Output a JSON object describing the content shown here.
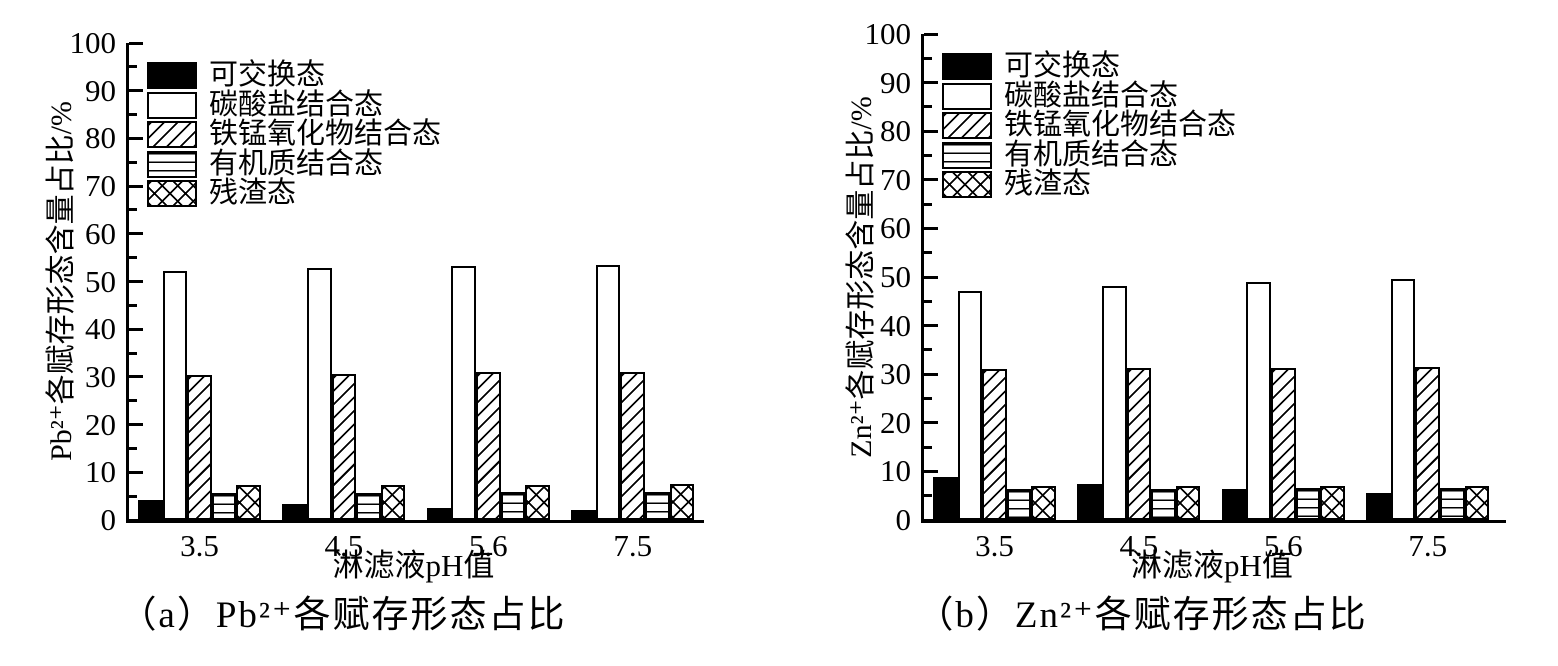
{
  "figure": {
    "background": "#ffffff",
    "ink_color": "#000000"
  },
  "legend": {
    "items": [
      {
        "key": "exchangeable",
        "label": "可交换态",
        "pattern": "solid-black"
      },
      {
        "key": "carbonate-bound",
        "label": "碳酸盐结合态",
        "pattern": "white"
      },
      {
        "key": "fe-mn-oxide-bound",
        "label": "铁锰氧化物结合态",
        "pattern": "diagonal-hatch"
      },
      {
        "key": "organic-bound",
        "label": "有机质结合态",
        "pattern": "horizontal-lines"
      },
      {
        "key": "residual",
        "label": "残渣态",
        "pattern": "crosshatch"
      }
    ]
  },
  "chart_data": [
    {
      "id": "pb",
      "type": "bar",
      "caption": "（a）Pb²⁺各赋存形态占比",
      "xlabel": "淋滤液pH值",
      "ylabel": "Pb²⁺各赋存形态含量占比/%",
      "categories": [
        "3.5",
        "4.5",
        "5.6",
        "7.5"
      ],
      "series": [
        {
          "key": "exchangeable",
          "name": "可交换态",
          "values": [
            4.3,
            3.4,
            2.6,
            2.1
          ]
        },
        {
          "key": "carbonate-bound",
          "name": "碳酸盐结合态",
          "values": [
            52.2,
            52.9,
            53.2,
            53.5
          ]
        },
        {
          "key": "fe-mn-oxide-bound",
          "name": "铁锰氧化物结合态",
          "values": [
            30.4,
            30.7,
            31.0,
            31.1
          ]
        },
        {
          "key": "organic-bound",
          "name": "有机质结合态",
          "values": [
            5.6,
            5.7,
            5.9,
            5.9
          ]
        },
        {
          "key": "residual",
          "name": "残渣态",
          "values": [
            7.3,
            7.4,
            7.4,
            7.5
          ]
        }
      ],
      "ylim": [
        0,
        100
      ],
      "ytick_step": 10,
      "yminor_step": 5,
      "ytick_labels": [
        "0",
        "10",
        "20",
        "30",
        "40",
        "50",
        "60",
        "70",
        "80",
        "90",
        "100"
      ],
      "grid": false,
      "legend_position": "upper-left-inside"
    },
    {
      "id": "zn",
      "type": "bar",
      "caption": "（b）Zn²⁺各赋存形态占比",
      "xlabel": "淋滤液pH值",
      "ylabel": "Zn²⁺各赋存形态含量占比/%",
      "categories": [
        "3.5",
        "4.5",
        "5.6",
        "7.5"
      ],
      "series": [
        {
          "key": "exchangeable",
          "name": "可交换态",
          "values": [
            8.8,
            7.4,
            6.4,
            5.6
          ]
        },
        {
          "key": "carbonate-bound",
          "name": "碳酸盐结合态",
          "values": [
            47.2,
            48.2,
            48.9,
            49.5
          ]
        },
        {
          "key": "fe-mn-oxide-bound",
          "name": "铁锰氧化物结合态",
          "values": [
            31.1,
            31.2,
            31.3,
            31.4
          ]
        },
        {
          "key": "organic-bound",
          "name": "有机质结合态",
          "values": [
            6.3,
            6.4,
            6.5,
            6.6
          ]
        },
        {
          "key": "residual",
          "name": "残渣态",
          "values": [
            7.0,
            7.0,
            7.1,
            7.1
          ]
        }
      ],
      "ylim": [
        0,
        100
      ],
      "ytick_step": 10,
      "yminor_step": 5,
      "ytick_labels": [
        "0",
        "10",
        "20",
        "30",
        "40",
        "50",
        "60",
        "70",
        "80",
        "90",
        "100"
      ],
      "grid": false,
      "legend_position": "upper-left-inside"
    }
  ]
}
